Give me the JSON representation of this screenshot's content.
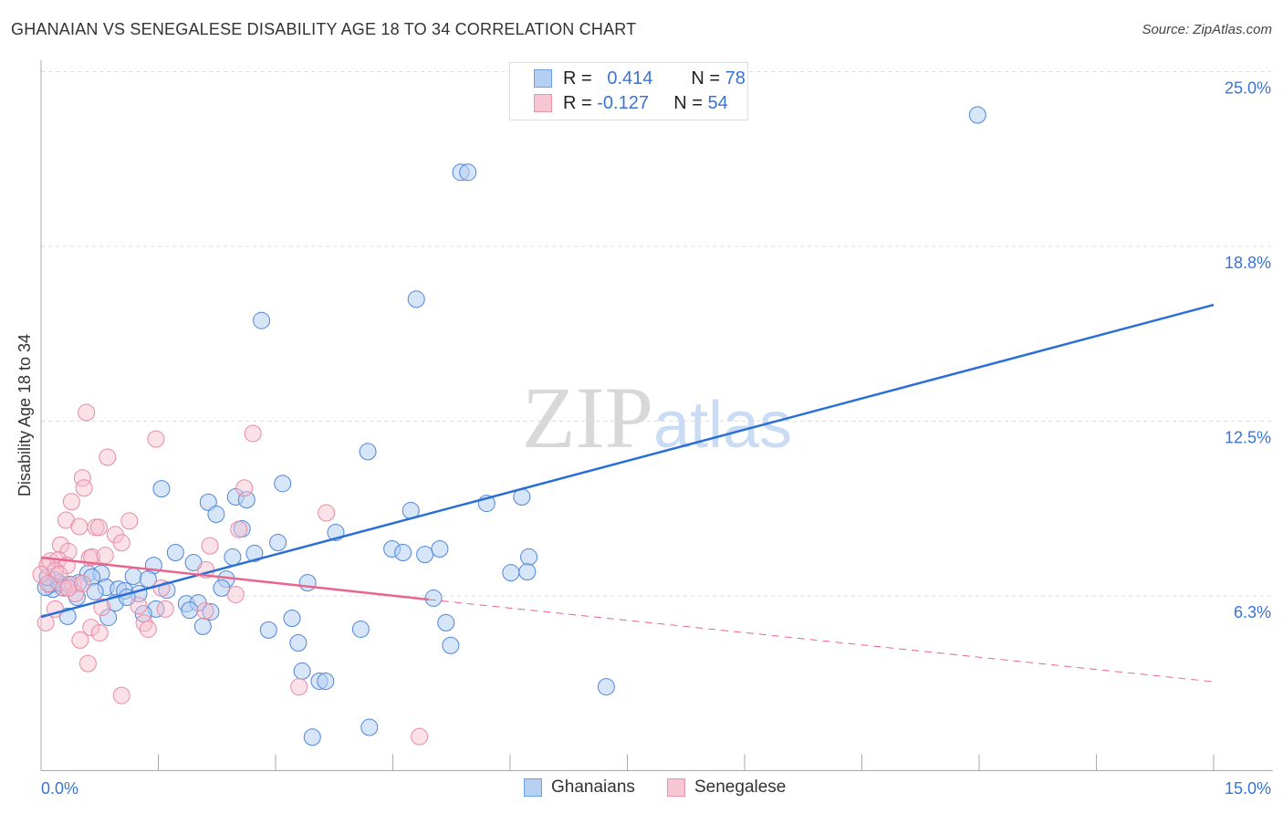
{
  "title": "GHANAIAN VS SENEGALESE DISABILITY AGE 18 TO 34 CORRELATION CHART",
  "source": "Source: ZipAtlas.com",
  "watermark": "ZIPatlas",
  "legend": {
    "rows": [
      {
        "r_label": "R =",
        "r": "0.414",
        "n_label": "N =",
        "n": "78"
      },
      {
        "r_label": "R =",
        "r": "-0.127",
        "n_label": "N =",
        "n": "54"
      }
    ]
  },
  "colors": {
    "blue": "#3a7bd5",
    "blue_fill": "#b6d0f3",
    "pink": "#e8708f",
    "pink_fill": "#f7bfce",
    "axis_label": "#3a73d6"
  },
  "chart_data": {
    "type": "scatter",
    "title": "GHANAIAN VS SENEGALESE DISABILITY AGE 18 TO 34 CORRELATION CHART",
    "xlabel": "",
    "ylabel": "Disability Age 18 to 34",
    "xlim": [
      0,
      15
    ],
    "ylim": [
      0,
      25
    ],
    "x_tick_labels": [
      "0.0%",
      "15.0%"
    ],
    "y_ticks": [
      6.25,
      12.5,
      18.75,
      25
    ],
    "y_tick_labels": [
      "6.3%",
      "12.5%",
      "18.8%",
      "25.0%"
    ],
    "legend_position": "bottom-center",
    "series": [
      {
        "name": "Ghanaians",
        "trend": [
          [
            0,
            5.5
          ],
          [
            15,
            16.66
          ]
        ],
        "points": [
          [
            11.98,
            23.45
          ],
          [
            5.37,
            21.4
          ],
          [
            5.46,
            21.4
          ],
          [
            2.82,
            16.1
          ],
          [
            4.8,
            16.86
          ],
          [
            4.18,
            11.41
          ],
          [
            3.09,
            10.27
          ],
          [
            1.54,
            10.08
          ],
          [
            2.14,
            9.6
          ],
          [
            2.49,
            9.79
          ],
          [
            2.63,
            9.69
          ],
          [
            4.73,
            9.3
          ],
          [
            5.7,
            9.56
          ],
          [
            6.15,
            9.79
          ],
          [
            2.24,
            9.17
          ],
          [
            2.57,
            8.65
          ],
          [
            3.77,
            8.52
          ],
          [
            3.03,
            8.16
          ],
          [
            1.72,
            7.8
          ],
          [
            1.44,
            7.34
          ],
          [
            1.95,
            7.44
          ],
          [
            2.73,
            7.77
          ],
          [
            2.45,
            7.64
          ],
          [
            4.49,
            7.93
          ],
          [
            4.63,
            7.8
          ],
          [
            4.91,
            7.73
          ],
          [
            5.1,
            7.93
          ],
          [
            6.24,
            7.64
          ],
          [
            6.01,
            7.08
          ],
          [
            6.22,
            7.11
          ],
          [
            1.18,
            6.95
          ],
          [
            1.37,
            6.85
          ],
          [
            1.61,
            6.46
          ],
          [
            2.37,
            6.85
          ],
          [
            2.31,
            6.53
          ],
          [
            0.6,
            7.05
          ],
          [
            0.77,
            7.05
          ],
          [
            0.65,
            6.92
          ],
          [
            0.48,
            6.72
          ],
          [
            0.83,
            6.56
          ],
          [
            0.99,
            6.49
          ],
          [
            1.07,
            6.43
          ],
          [
            1.25,
            6.33
          ],
          [
            0.69,
            6.4
          ],
          [
            0.46,
            6.2
          ],
          [
            0.27,
            6.56
          ],
          [
            0.15,
            6.49
          ],
          [
            0.18,
            6.82
          ],
          [
            0.12,
            6.66
          ],
          [
            0.06,
            6.56
          ],
          [
            3.41,
            6.72
          ],
          [
            5.02,
            6.17
          ],
          [
            0.95,
            6.0
          ],
          [
            1.47,
            5.78
          ],
          [
            1.86,
            5.97
          ],
          [
            2.01,
            6.0
          ],
          [
            1.9,
            5.74
          ],
          [
            2.17,
            5.68
          ],
          [
            1.31,
            5.61
          ],
          [
            0.86,
            5.48
          ],
          [
            0.34,
            5.52
          ],
          [
            2.07,
            5.16
          ],
          [
            3.21,
            5.45
          ],
          [
            2.91,
            5.03
          ],
          [
            4.09,
            5.06
          ],
          [
            5.18,
            5.29
          ],
          [
            3.29,
            4.57
          ],
          [
            5.24,
            4.48
          ],
          [
            3.34,
            3.56
          ],
          [
            3.56,
            3.2
          ],
          [
            3.64,
            3.2
          ],
          [
            7.23,
            3.0
          ],
          [
            3.47,
            1.2
          ],
          [
            4.2,
            1.55
          ],
          [
            1.1,
            6.2
          ],
          [
            0.23,
            6.72
          ],
          [
            0.08,
            6.92
          ],
          [
            0.36,
            6.66
          ]
        ]
      },
      {
        "name": "Senegalese",
        "trend": [
          [
            0,
            7.62
          ],
          [
            4.96,
            6.12
          ]
        ],
        "trend_dashed": [
          [
            4.96,
            6.12
          ],
          [
            15,
            3.18
          ]
        ],
        "points": [
          [
            0.58,
            12.81
          ],
          [
            1.47,
            11.86
          ],
          [
            2.71,
            12.06
          ],
          [
            0.85,
            11.21
          ],
          [
            0.53,
            10.47
          ],
          [
            0.55,
            10.11
          ],
          [
            2.6,
            10.11
          ],
          [
            0.39,
            9.62
          ],
          [
            3.65,
            9.22
          ],
          [
            0.32,
            8.96
          ],
          [
            1.13,
            8.93
          ],
          [
            0.49,
            8.73
          ],
          [
            0.7,
            8.7
          ],
          [
            0.74,
            8.7
          ],
          [
            0.95,
            8.44
          ],
          [
            2.53,
            8.63
          ],
          [
            1.03,
            8.15
          ],
          [
            0.25,
            8.07
          ],
          [
            2.16,
            8.04
          ],
          [
            0.35,
            7.84
          ],
          [
            0.62,
            7.61
          ],
          [
            0.65,
            7.64
          ],
          [
            0.82,
            7.7
          ],
          [
            0.12,
            7.5
          ],
          [
            0.22,
            7.54
          ],
          [
            0.08,
            7.34
          ],
          [
            0.33,
            7.34
          ],
          [
            0.18,
            7.15
          ],
          [
            0,
            7.02
          ],
          [
            0.23,
            7.02
          ],
          [
            2.11,
            7.18
          ],
          [
            0.09,
            6.69
          ],
          [
            0.41,
            6.66
          ],
          [
            0.29,
            6.53
          ],
          [
            1.54,
            6.53
          ],
          [
            2.49,
            6.3
          ],
          [
            0.44,
            6.33
          ],
          [
            1.25,
            5.9
          ],
          [
            1.59,
            5.78
          ],
          [
            0.78,
            5.84
          ],
          [
            0.18,
            5.78
          ],
          [
            2.1,
            5.71
          ],
          [
            1.32,
            5.28
          ],
          [
            0.64,
            5.12
          ],
          [
            1.37,
            5.06
          ],
          [
            0.75,
            4.93
          ],
          [
            0.5,
            4.67
          ],
          [
            0.06,
            5.29
          ],
          [
            0.6,
            3.83
          ],
          [
            1.03,
            2.69
          ],
          [
            3.3,
            3.0
          ],
          [
            4.84,
            1.22
          ],
          [
            0.35,
            6.53
          ],
          [
            0.53,
            6.69
          ]
        ]
      }
    ]
  },
  "bottom_legend": [
    {
      "label": "Ghanaians"
    },
    {
      "label": "Senegalese"
    }
  ]
}
